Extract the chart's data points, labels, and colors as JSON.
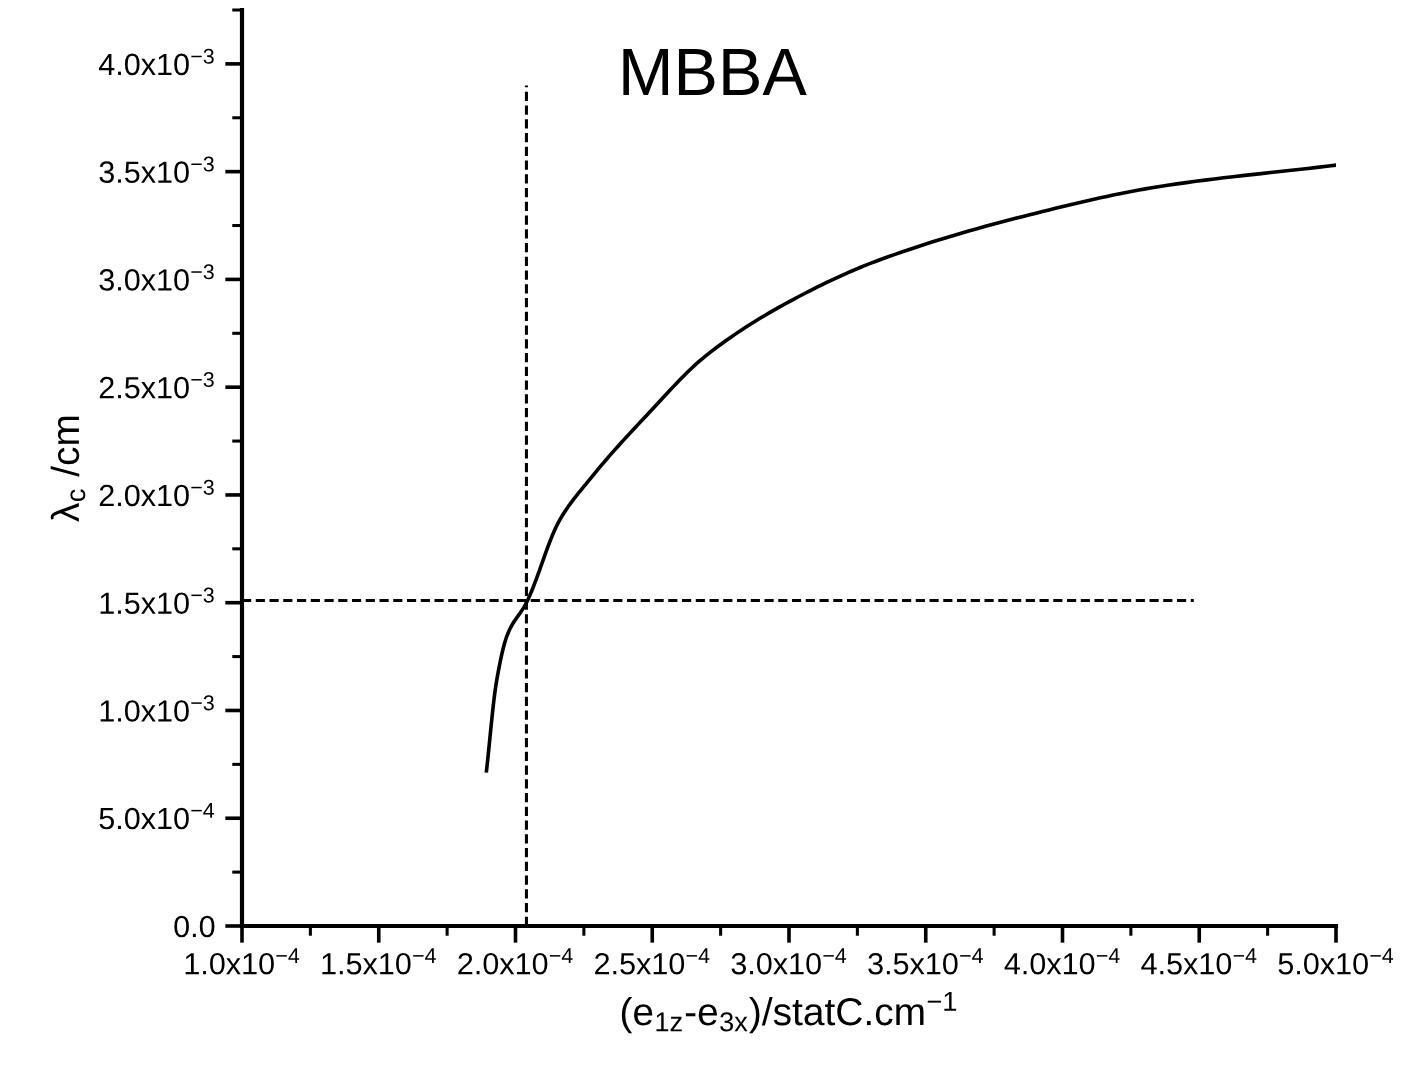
{
  "chart_data": {
    "type": "line",
    "title": "MBBA",
    "xlabel": "(e$_{1z}$-e$_{3x}$)/statC.cm$^{−1}$",
    "ylabel": "λ$_{c}$ /cm",
    "series": [
      {
        "color": "#000000",
        "line_style": "solid",
        "x": [
          0.0001894,
          0.000193,
          0.000197,
          0.000204,
          0.000216,
          0.000227,
          0.000248,
          0.00027,
          0.000305,
          0.000333,
          0.000388,
          0.000435,
          0.0005
        ],
        "values": [
          0.00072,
          0.00113,
          0.00135,
          0.0015,
          0.00188,
          0.00207,
          0.00237,
          0.00265,
          0.00293,
          0.00309,
          0.0033,
          0.00343,
          0.00353
        ]
      },
      {
        "color": "#000000",
        "line_style": "dashed",
        "x": [
          0.000204,
          0.000204
        ],
        "values": [
          0,
          0.0039
        ]
      },
      {
        "color": "#000000",
        "line_style": "dashed",
        "x": [
          0.0001,
          0.000448
        ],
        "values": [
          0.00151,
          0.00151
        ]
      }
    ],
    "xlim": [
      0.0001,
      0.0005
    ],
    "ylim": [
      0,
      0.00425
    ],
    "xticks": [
      {
        "value": 0.0001,
        "label": "1.0x10$^{−4}$"
      },
      {
        "value": 0.00015,
        "label": "1.5x10$^{−4}$"
      },
      {
        "value": 0.0002,
        "label": "2.0x10$^{−4}$"
      },
      {
        "value": 0.00025,
        "label": "2.5x10$^{−4}$"
      },
      {
        "value": 0.0003,
        "label": "3.0x10$^{−4}$"
      },
      {
        "value": 0.00035,
        "label": "3.5x10$^{−4}$"
      },
      {
        "value": 0.0004,
        "label": "4.0x10$^{−4}$"
      },
      {
        "value": 0.00045,
        "label": "4.5x10$^{−4}$"
      },
      {
        "value": 0.0005,
        "label": "5.0x10$^{−4}$"
      }
    ],
    "yticks": [
      {
        "value": 0,
        "label": "0.0"
      },
      {
        "value": 0.0005,
        "label": "5.0x10$^{−4}$"
      },
      {
        "value": 0.001,
        "label": "1.0x10$^{−3}$"
      },
      {
        "value": 0.0015,
        "label": "1.5x10$^{−3}$"
      },
      {
        "value": 0.002,
        "label": "2.0x10$^{−3}$"
      },
      {
        "value": 0.0025,
        "label": "2.5x10$^{−3}$"
      },
      {
        "value": 0.003,
        "label": "3.0x10$^{−3}$"
      },
      {
        "value": 0.0035,
        "label": "3.5x10$^{−3}$"
      },
      {
        "value": 0.004,
        "label": "4.0x10$^{−3}$"
      }
    ],
    "grid": false
  }
}
